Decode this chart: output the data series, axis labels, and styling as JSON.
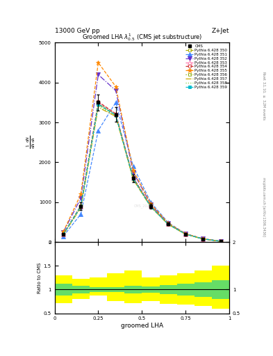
{
  "title_top_left": "13000 GeV pp",
  "title_top_right": "Z+Jet",
  "plot_title": "Groomed LHA $\\lambda^{1}_{0.5}$ (CMS jet substructure)",
  "xlabel": "groomed LHA",
  "right_label_top": "Rivet 3.1.10, $\\geq$ 3.2M events",
  "right_label_bottom": "mcplots.cern.ch [arXiv:1306.3436]",
  "watermark": "CMS_2021_...",
  "x_bins": [
    0.0,
    0.1,
    0.2,
    0.3,
    0.4,
    0.5,
    0.6,
    0.7,
    0.8,
    0.9,
    1.0
  ],
  "x_centers": [
    0.05,
    0.15,
    0.25,
    0.35,
    0.45,
    0.55,
    0.65,
    0.75,
    0.85,
    0.95
  ],
  "cms_y": [
    200,
    900,
    3500,
    3200,
    1600,
    900,
    450,
    200,
    80,
    20
  ],
  "cms_yerr": [
    30,
    100,
    200,
    180,
    100,
    60,
    35,
    20,
    10,
    5
  ],
  "pythia_tunes": [
    {
      "label": "Pythia 6.428 350",
      "color": "#aaaa00",
      "linestyle": "--",
      "marker": "s",
      "markerfill": "none",
      "y": [
        195,
        880,
        3450,
        3180,
        1580,
        890,
        445,
        198,
        78,
        19
      ]
    },
    {
      "label": "Pythia 6.428 351",
      "color": "#4488ff",
      "linestyle": "--",
      "marker": "^",
      "markerfill": "full",
      "y": [
        150,
        700,
        2800,
        3500,
        1900,
        1000,
        490,
        210,
        85,
        22
      ]
    },
    {
      "label": "Pythia 6.428 352",
      "color": "#6633cc",
      "linestyle": "-.",
      "marker": "v",
      "markerfill": "full",
      "y": [
        250,
        1100,
        4200,
        3800,
        1750,
        950,
        470,
        205,
        82,
        21
      ]
    },
    {
      "label": "Pythia 6.428 353",
      "color": "#ff77aa",
      "linestyle": "--",
      "marker": "^",
      "markerfill": "none",
      "y": [
        200,
        900,
        3500,
        3210,
        1610,
        905,
        452,
        200,
        80,
        20
      ]
    },
    {
      "label": "Pythia 6.428 354",
      "color": "#cc3333",
      "linestyle": "--",
      "marker": "o",
      "markerfill": "none",
      "y": [
        205,
        910,
        3520,
        3220,
        1620,
        910,
        455,
        202,
        81,
        20
      ]
    },
    {
      "label": "Pythia 6.428 355",
      "color": "#ff8800",
      "linestyle": "--",
      "marker": "*",
      "markerfill": "full",
      "y": [
        260,
        1200,
        4500,
        3900,
        1800,
        960,
        475,
        208,
        83,
        21
      ]
    },
    {
      "label": "Pythia 6.428 356",
      "color": "#88aa00",
      "linestyle": ":",
      "marker": "s",
      "markerfill": "none",
      "y": [
        200,
        905,
        3480,
        3195,
        1600,
        900,
        450,
        199,
        79,
        20
      ]
    },
    {
      "label": "Pythia 6.428 357",
      "color": "#ccaa00",
      "linestyle": "-.",
      "marker": "None",
      "markerfill": "none",
      "y": [
        185,
        860,
        3380,
        3150,
        1570,
        880,
        442,
        196,
        77,
        19
      ]
    },
    {
      "label": "Pythia 6.428 358",
      "color": "#88cc44",
      "linestyle": ":",
      "marker": "None",
      "markerfill": "none",
      "y": [
        190,
        870,
        3410,
        3165,
        1580,
        885,
        445,
        197,
        78,
        19
      ]
    },
    {
      "label": "Pythia 6.428 359",
      "color": "#00bbcc",
      "linestyle": "--",
      "marker": "s",
      "markerfill": "full",
      "y": [
        198,
        895,
        3460,
        3185,
        1590,
        892,
        448,
        198,
        79,
        20
      ]
    }
  ],
  "ratio_center": [
    1.0,
    1.0,
    1.0,
    1.0,
    1.0,
    1.0,
    1.0,
    1.0,
    1.0,
    1.0
  ],
  "ratio_green_lo": [
    0.88,
    0.92,
    0.95,
    0.95,
    0.92,
    0.93,
    0.9,
    0.88,
    0.85,
    0.8
  ],
  "ratio_green_hi": [
    1.12,
    1.08,
    1.05,
    1.05,
    1.08,
    1.07,
    1.1,
    1.12,
    1.15,
    1.2
  ],
  "ratio_yellow_lo": [
    0.72,
    0.8,
    0.88,
    0.75,
    0.72,
    0.75,
    0.7,
    0.68,
    0.65,
    0.6
  ],
  "ratio_yellow_hi": [
    1.3,
    1.22,
    1.25,
    1.35,
    1.4,
    1.25,
    1.3,
    1.35,
    1.4,
    1.5
  ],
  "ylim_main": [
    0,
    5000
  ],
  "ylim_ratio": [
    0.5,
    2.0
  ],
  "xlim": [
    0.0,
    1.0
  ],
  "yticks_main": [
    0,
    1000,
    2000,
    3000,
    4000,
    5000
  ],
  "ytick_labels_main": [
    "0",
    "1000",
    "2000",
    "3000",
    "4000",
    "5000"
  ]
}
